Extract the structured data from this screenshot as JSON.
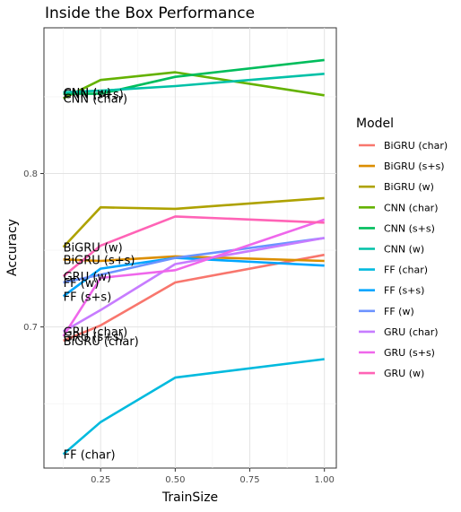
{
  "chart_data": {
    "type": "line",
    "title": "Inside the Box Performance",
    "xlabel": "TrainSize",
    "ylabel": "Accuracy",
    "xlim": [
      0.06,
      1.04
    ],
    "ylim": [
      0.608,
      0.895
    ],
    "x_ticks": [
      0.25,
      0.5,
      0.75,
      1.0
    ],
    "x_tick_labels": [
      "0.25",
      "0.50",
      "0.75",
      "1.00"
    ],
    "y_ticks": [
      0.7,
      0.8
    ],
    "y_tick_labels": [
      "0.7",
      "0.8"
    ],
    "grid": true,
    "legend_placement": "right",
    "legend_title": "Model",
    "x": [
      0.125,
      0.25,
      0.5,
      1.0
    ],
    "series": [
      {
        "name": "BiGRU (char)",
        "color": "#F8766D",
        "values": [
          0.691,
          0.701,
          0.729,
          0.747
        ],
        "line_label": "BiGRU (char)"
      },
      {
        "name": "BiGRU (s+s)",
        "color": "#DB8E00",
        "values": [
          0.744,
          0.743,
          0.746,
          0.743
        ],
        "line_label": "BiGRU (s+s)"
      },
      {
        "name": "BiGRU (w)",
        "color": "#AEA200",
        "values": [
          0.752,
          0.778,
          0.777,
          0.784
        ],
        "line_label": "BiGRU (w)"
      },
      {
        "name": "CNN (char)",
        "color": "#64B200",
        "values": [
          0.849,
          0.861,
          0.866,
          0.851
        ],
        "line_label": "CNN (char)"
      },
      {
        "name": "CNN (s+s)",
        "color": "#00BD5C",
        "values": [
          0.852,
          0.852,
          0.863,
          0.874
        ],
        "line_label": "CNN (s+s)"
      },
      {
        "name": "CNN (w)",
        "color": "#00C1A7",
        "values": [
          0.853,
          0.854,
          0.857,
          0.865
        ],
        "line_label": "CNN (w)"
      },
      {
        "name": "FF (char)",
        "color": "#00BADE",
        "values": [
          0.617,
          0.638,
          0.667,
          0.679
        ],
        "line_label": "FF (char)"
      },
      {
        "name": "FF (s+s)",
        "color": "#00A6FF",
        "values": [
          0.72,
          0.738,
          0.745,
          0.74
        ],
        "line_label": "FF (s+s)"
      },
      {
        "name": "FF (w)",
        "color": "#6C93FF",
        "values": [
          0.729,
          0.734,
          0.745,
          0.758
        ],
        "line_label": "FF (w)"
      },
      {
        "name": "GRU (char)",
        "color": "#C77CFF",
        "values": [
          0.697,
          0.711,
          0.741,
          0.758
        ],
        "line_label": "GRU (char)"
      },
      {
        "name": "GRU (s+s)",
        "color": "#EF67EB",
        "values": [
          0.694,
          0.732,
          0.737,
          0.77
        ],
        "line_label": "GRU (s+s)"
      },
      {
        "name": "GRU (w)",
        "color": "#FF63B6",
        "values": [
          0.733,
          0.753,
          0.772,
          0.768
        ],
        "line_label": "GRU (w)"
      }
    ]
  }
}
